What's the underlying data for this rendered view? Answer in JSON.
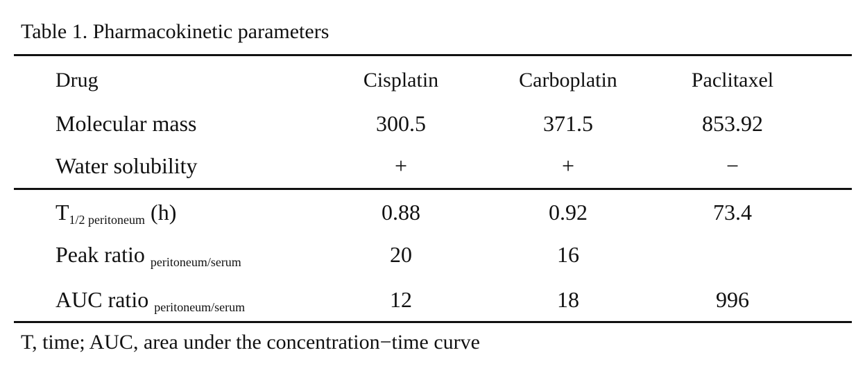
{
  "table": {
    "title": "Table 1. Pharmacokinetic parameters",
    "header": {
      "parameter_label": "Drug",
      "columns": [
        "Cisplatin",
        "Carboplatin",
        "Paclitaxel"
      ]
    },
    "rows": [
      {
        "label": "Molecular mass",
        "subscript": "",
        "suffix": "",
        "values": [
          "300.5",
          "371.5",
          "853.92"
        ]
      },
      {
        "label": "Water solubility",
        "subscript": "",
        "suffix": "",
        "values": [
          "+",
          "+",
          "−"
        ]
      },
      {
        "label": "T",
        "subscript": "1/2 peritoneum",
        "suffix": " (h)",
        "values": [
          "0.88",
          "0.92",
          "73.4"
        ]
      },
      {
        "label": "Peak ratio ",
        "subscript": "peritoneum/serum",
        "suffix": "",
        "values": [
          "20",
          "16",
          ""
        ]
      },
      {
        "label": "AUC ratio ",
        "subscript": "peritoneum/serum",
        "suffix": "",
        "values": [
          "12",
          "18",
          "996"
        ]
      }
    ],
    "footnote": "T, time; AUC, area under the concentration−time curve"
  }
}
